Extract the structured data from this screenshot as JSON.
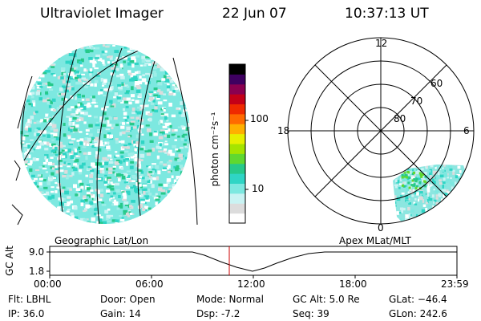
{
  "header": {
    "title": "Ultraviolet Imager",
    "date": "22 Jun 07",
    "time": "10:37:13 UT"
  },
  "colorbar": {
    "unit_label": "photon cm⁻²s⁻¹",
    "ticks": [
      "100",
      "10"
    ],
    "colors": [
      "#ffffff",
      "#dcdcdc",
      "#c9f3f3",
      "#7de8e0",
      "#2fd5c5",
      "#27c98a",
      "#60d830",
      "#a5e400",
      "#e7f000",
      "#ffb000",
      "#ff6a00",
      "#ef2a00",
      "#c40018",
      "#8a0050",
      "#3e0060",
      "#000000"
    ]
  },
  "polar_plot": {
    "mlt_labels": [
      "12",
      "18",
      "6",
      "0"
    ],
    "lat_labels": [
      "60",
      "70",
      "80"
    ]
  },
  "timeline": {
    "left_label": "Geographic Lat/Lon",
    "right_label": "Apex MLat/MLT",
    "y_axis_label": "GC Alt",
    "y_ticks": [
      "9.0",
      "1.8"
    ],
    "x_ticks": [
      "00:00",
      "06:00",
      "12:00",
      "18:00",
      "23:59"
    ],
    "current_time_color": "#cc0000"
  },
  "status": {
    "flt": "Flt: LBHL",
    "ip": "IP: 36.0",
    "door": "Door: Open",
    "gain": "Gain: 14",
    "mode": "Mode: Normal",
    "dsp": "Dsp:    -7.2",
    "gc_alt": "GC Alt: 5.0 Re",
    "seq": "Seq: 39",
    "glat": "GLat: −46.4",
    "glon": "GLon: 242.6"
  }
}
